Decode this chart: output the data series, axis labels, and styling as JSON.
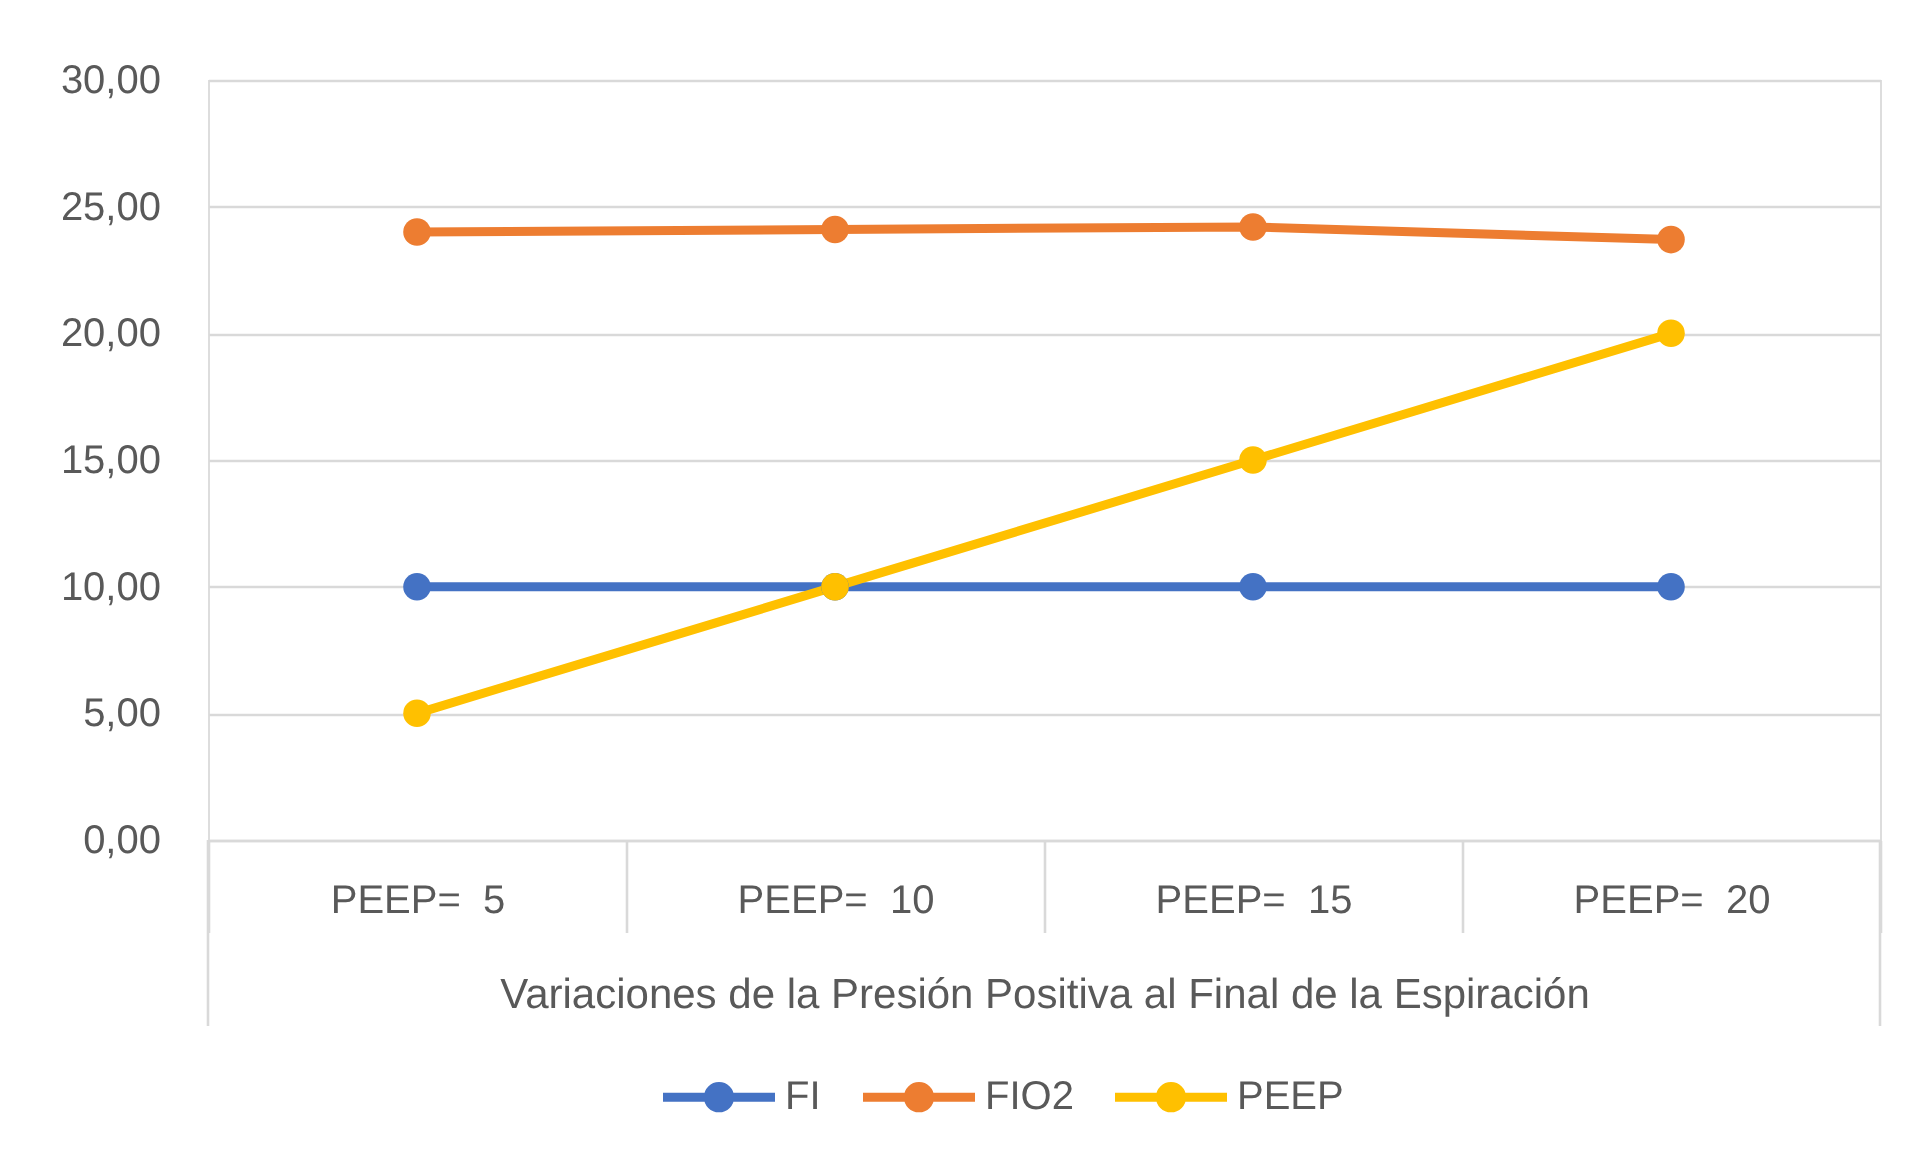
{
  "chart_data": {
    "type": "line",
    "categories": [
      "PEEP=  5",
      "PEEP=  10",
      "PEEP=  15",
      "PEEP=  20"
    ],
    "xlabel": "Variaciones de la Presión Positiva al Final de la Espiración",
    "ylim": [
      0,
      30
    ],
    "yticks": [
      {
        "value": 0,
        "label": "0,00"
      },
      {
        "value": 5,
        "label": "5,00"
      },
      {
        "value": 10,
        "label": "10,00"
      },
      {
        "value": 15,
        "label": "15,00"
      },
      {
        "value": 20,
        "label": "20,00"
      },
      {
        "value": 25,
        "label": "25,00"
      },
      {
        "value": 30,
        "label": "30,00"
      }
    ],
    "grid": "y",
    "legend": "bottom",
    "marker": "circle",
    "line_style": "solid",
    "series": [
      {
        "name": "FI",
        "color": "#4472c4",
        "values": [
          10,
          10,
          10,
          10
        ]
      },
      {
        "name": "FIO2",
        "color": "#ed7d31",
        "values": [
          24.0,
          24.1,
          24.2,
          23.7
        ]
      },
      {
        "name": "PEEP",
        "color": "#ffc000",
        "values": [
          5,
          10,
          15,
          20
        ]
      }
    ]
  }
}
